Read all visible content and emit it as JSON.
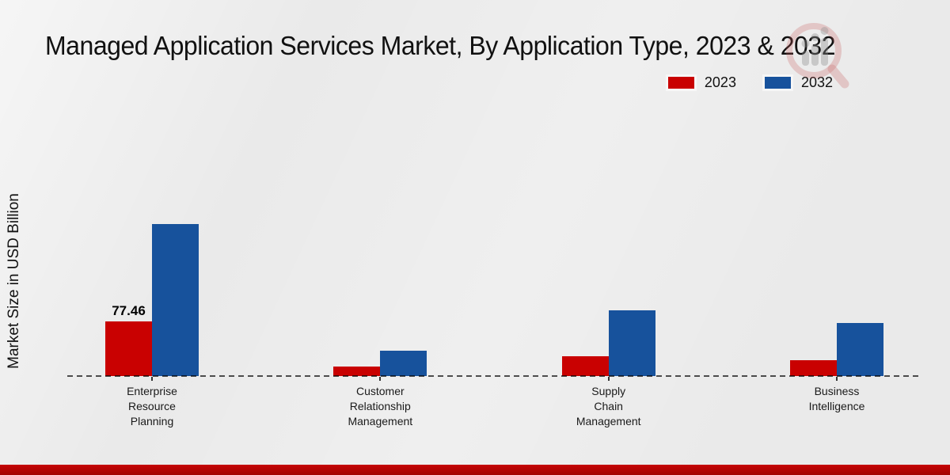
{
  "title": "Managed Application Services Market, By Application Type, 2023 & 2032",
  "ylabel": "Market Size in USD Billion",
  "legend": {
    "items": [
      {
        "label": "2023"
      },
      {
        "label": "2032"
      }
    ]
  },
  "watermark_icon": "magnifier-growth-chart-logo",
  "accent_colors": {
    "footer_strip": "#b90303",
    "series_2023": "#c90101",
    "series_2032": "#17529c"
  },
  "chart_data": {
    "type": "bar",
    "title": "Managed Application Services Market, By Application Type, 2023 & 2032",
    "xlabel": "",
    "ylabel": "Market Size in USD Billion",
    "categories": [
      "Enterprise Resource Planning",
      "Customer Relationship Management",
      "Supply Chain Management",
      "Business Intelligence"
    ],
    "series": [
      {
        "name": "2023",
        "color": "#c90101",
        "values": [
          77.46,
          13.5,
          28.5,
          22.5
        ]
      },
      {
        "name": "2032",
        "color": "#17529c",
        "values": [
          215,
          36.5,
          93.5,
          75.5
        ]
      }
    ],
    "annotations": [
      {
        "text": "77.46",
        "category_index": 0,
        "series_index": 0
      }
    ],
    "ylim": [
      0,
      240
    ],
    "grid": false,
    "y_axis_ticks_visible": false,
    "legend_position": "upper right",
    "baseline_style": "dashed"
  }
}
